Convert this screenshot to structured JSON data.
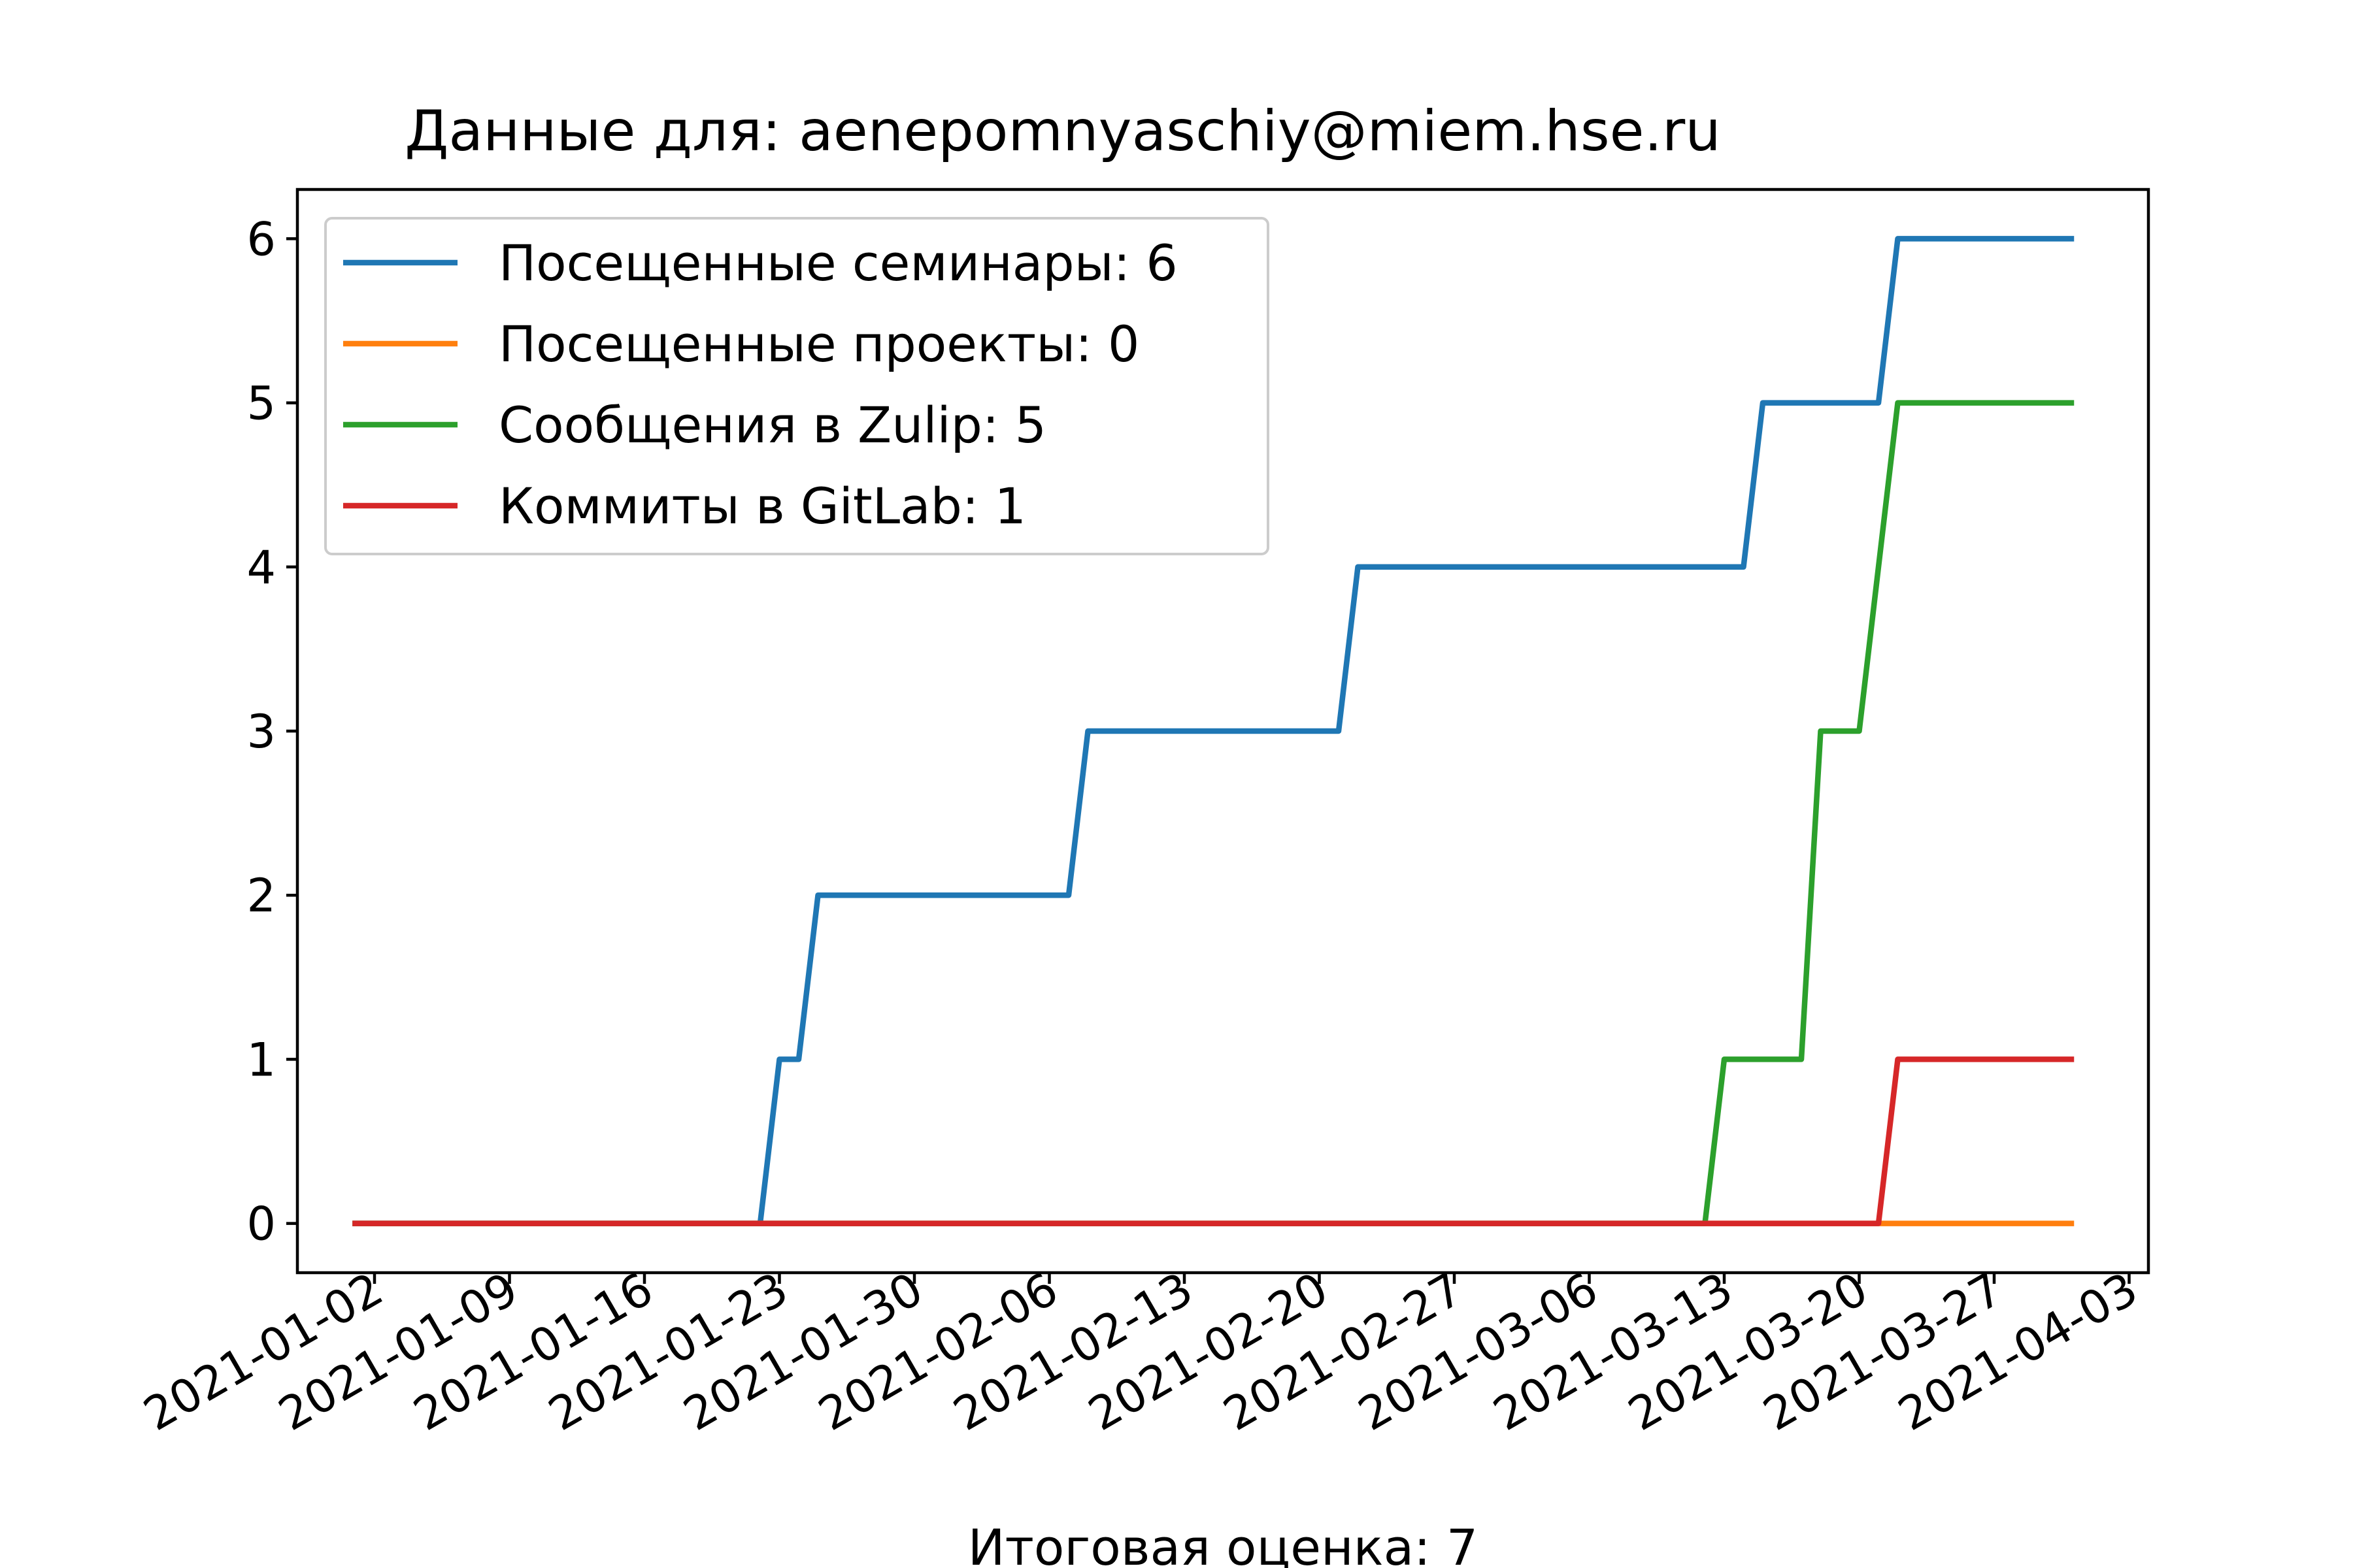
{
  "chart_data": {
    "type": "line",
    "title": "Данные для: aenepomnyaschiy@miem.hse.ru",
    "xlabel": "Итоговая оценка: 7",
    "ylabel": "",
    "x_type": "date",
    "xlim": [
      "2020-12-29",
      "2021-04-04"
    ],
    "ylim": [
      -0.3,
      6.3
    ],
    "x_ticks": [
      "2021-01-02",
      "2021-01-09",
      "2021-01-16",
      "2021-01-23",
      "2021-01-30",
      "2021-02-06",
      "2021-02-13",
      "2021-02-20",
      "2021-02-27",
      "2021-03-06",
      "2021-03-13",
      "2021-03-20",
      "2021-03-27",
      "2021-04-03"
    ],
    "y_ticks": [
      0,
      1,
      2,
      3,
      4,
      5,
      6
    ],
    "grid": false,
    "legend_position": "top-left",
    "series": [
      {
        "name": "Посещенные семинары: 6",
        "color": "#1f77b4",
        "x": [
          "2021-01-01",
          "2021-01-22",
          "2021-01-23",
          "2021-01-24",
          "2021-01-25",
          "2021-02-07",
          "2021-02-08",
          "2021-02-21",
          "2021-02-22",
          "2021-03-14",
          "2021-03-15",
          "2021-03-21",
          "2021-03-22",
          "2021-03-31"
        ],
        "y": [
          0,
          0,
          1,
          1,
          2,
          2,
          3,
          3,
          4,
          4,
          5,
          5,
          6,
          6
        ]
      },
      {
        "name": "Посещенные проекты: 0",
        "color": "#ff7f0e",
        "x": [
          "2021-01-01",
          "2021-03-31"
        ],
        "y": [
          0,
          0
        ]
      },
      {
        "name": "Сообщения в Zulip: 5",
        "color": "#2ca02c",
        "x": [
          "2021-01-01",
          "2021-03-12",
          "2021-03-13",
          "2021-03-17",
          "2021-03-18",
          "2021-03-20",
          "2021-03-22",
          "2021-03-31"
        ],
        "y": [
          0,
          0,
          1,
          1,
          3,
          3,
          5,
          5
        ]
      },
      {
        "name": "Коммиты в GitLab: 1",
        "color": "#d62728",
        "x": [
          "2021-01-01",
          "2021-03-21",
          "2021-03-22",
          "2021-03-31"
        ],
        "y": [
          0,
          0,
          1,
          1
        ]
      }
    ]
  }
}
